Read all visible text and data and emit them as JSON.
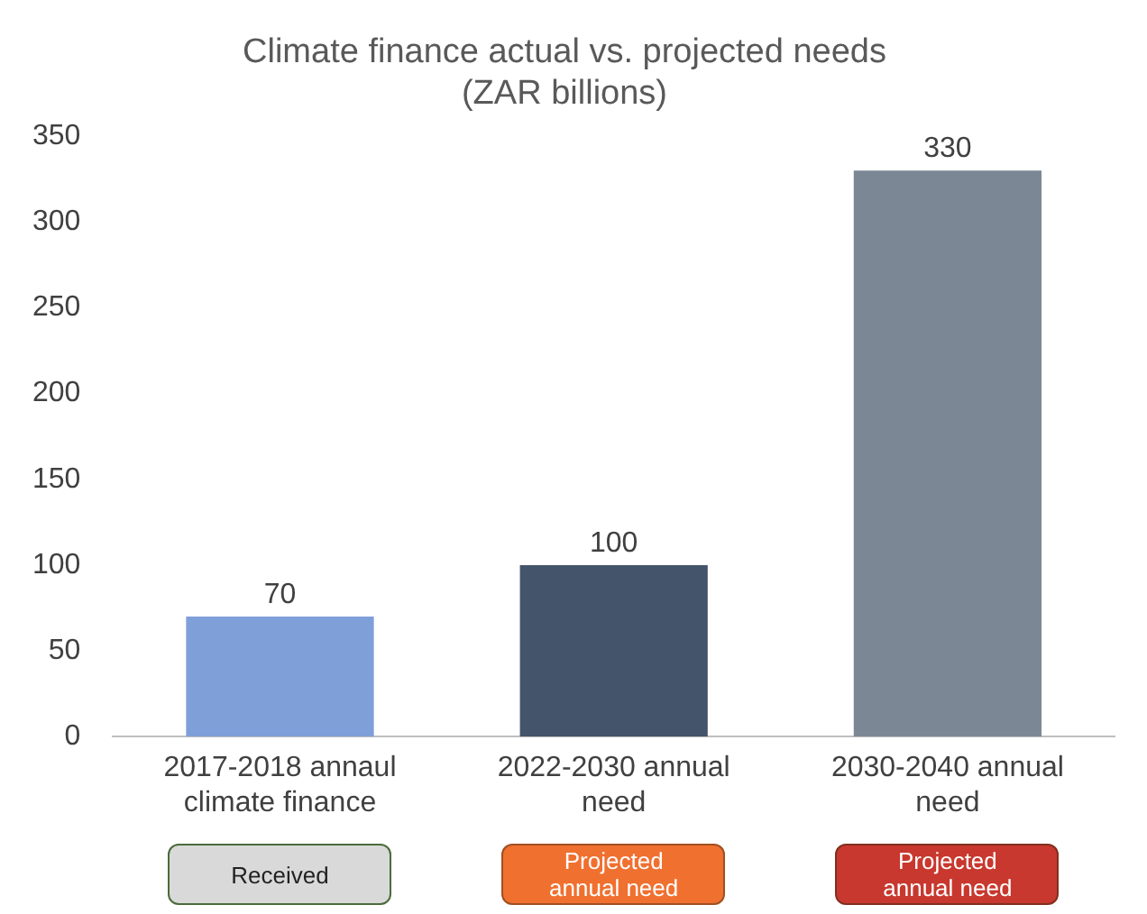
{
  "chart_data": {
    "type": "bar",
    "title": "Climate finance actual vs. projected needs\n(ZAR billions)",
    "categories": [
      "2017-2018 annaul\nclimate finance",
      "2022-2030 annual\nneed",
      "2030-2040 annual\nneed"
    ],
    "values": [
      70,
      100,
      330
    ],
    "colors": [
      "#7f9fd8",
      "#44546a",
      "#7b8794"
    ],
    "ylim": [
      0,
      350
    ],
    "yticks": [
      0,
      50,
      100,
      150,
      200,
      250,
      300,
      350
    ],
    "grid": false,
    "legend": false,
    "data_labels": true,
    "annotations": [
      "Received",
      "Projected\nannual need",
      "Projected\nannual need"
    ]
  }
}
